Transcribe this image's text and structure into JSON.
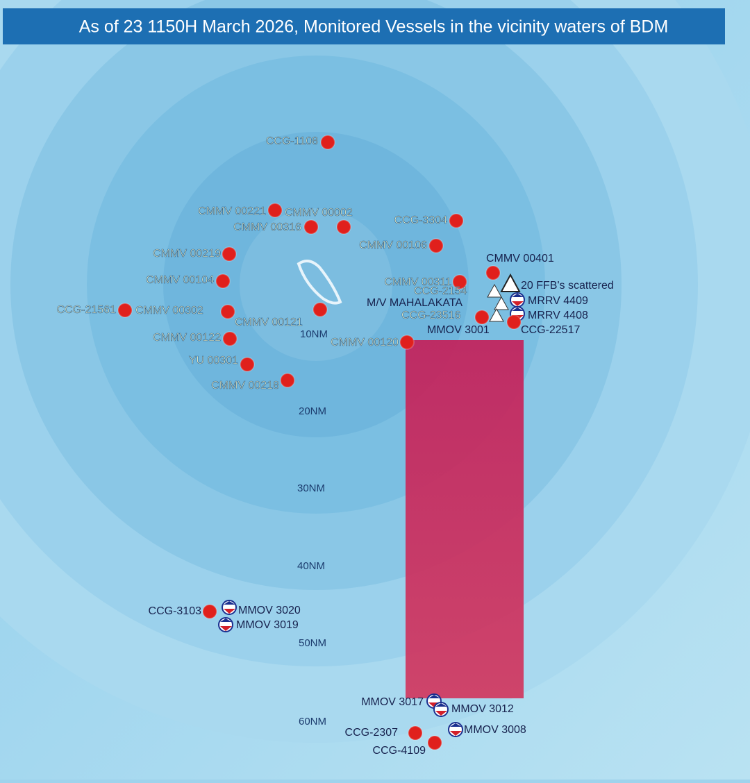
{
  "header": {
    "title": "As of 23 1150H March 2026, Monitored Vessels in the vicinity waters of BDM"
  },
  "range_labels": [
    "10NM",
    "20NM",
    "30NM",
    "40NM",
    "50NM",
    "60NM"
  ],
  "vessels": [
    {
      "label": "CCG-1108"
    },
    {
      "label": "CMMV 00221"
    },
    {
      "label": "CMMV 00002"
    },
    {
      "label": "CMMV 00316"
    },
    {
      "label": "CCG-3304"
    },
    {
      "label": "CMMV 00106"
    },
    {
      "label": "CMMV 00219"
    },
    {
      "label": "CMMV 00104"
    },
    {
      "label": "CCG-21561"
    },
    {
      "label": "CMMV 00302"
    },
    {
      "label": "CMMV 00121"
    },
    {
      "label": "CMMV 00122"
    },
    {
      "label": "YU 00301"
    },
    {
      "label": "CMMV 00218"
    },
    {
      "label": "CMMV 00120"
    },
    {
      "label": "CMMV 00401"
    },
    {
      "label": "CMMV 00311"
    },
    {
      "label": "CCG-2154"
    },
    {
      "label": "M/V MAHALAKATA"
    },
    {
      "label": "MRRV 4409"
    },
    {
      "label": "MRRV 4408"
    },
    {
      "label": "CCG-23516"
    },
    {
      "label": "MMOV 3001"
    },
    {
      "label": "CCG-22517"
    },
    {
      "label": "CCG-3103"
    },
    {
      "label": "MMOV 3020"
    },
    {
      "label": "MMOV 3019"
    },
    {
      "label": "MMOV 3017"
    },
    {
      "label": "MMOV 3012"
    },
    {
      "label": "MMOV 3008"
    },
    {
      "label": "CCG-2307"
    },
    {
      "label": "CCG-4109"
    }
  ],
  "other_markers": [
    {
      "label": "20 FFB's scattered"
    }
  ]
}
